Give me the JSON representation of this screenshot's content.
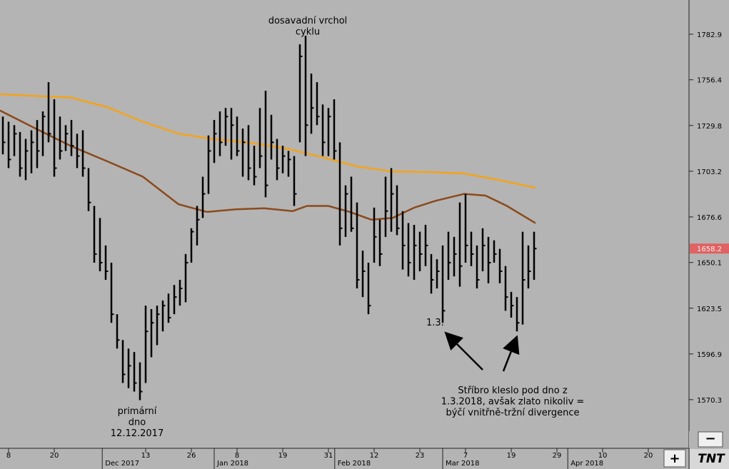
{
  "chart_data": {
    "type": "ohlc",
    "bars": {
      "high": [
        1735,
        1732,
        1730,
        1726,
        1722,
        1727,
        1733,
        1738,
        1755,
        1745,
        1735,
        1730,
        1733,
        1725,
        1727,
        1705,
        1683,
        1676,
        1660,
        1650,
        1620,
        1605,
        1600,
        1598,
        1592,
        1625,
        1623,
        1625,
        1628,
        1632,
        1637,
        1640,
        1655,
        1670,
        1683,
        1700,
        1724,
        1733,
        1738,
        1740,
        1740,
        1735,
        1728,
        1730,
        1718,
        1740,
        1750,
        1736,
        1722,
        1718,
        1715,
        1712,
        1777,
        1782,
        1760,
        1755,
        1742,
        1740,
        1745,
        1720,
        1695,
        1700,
        1685,
        1657,
        1650,
        1682,
        1675,
        1700,
        1705,
        1695,
        1680,
        1673,
        1672,
        1668,
        1672,
        1655,
        1652,
        1660,
        1668,
        1665,
        1685,
        1690,
        1668,
        1660,
        1670,
        1665,
        1663,
        1658,
        1648,
        1633,
        1630,
        1668,
        1660,
        1668
      ],
      "low": [
        1713,
        1705,
        1712,
        1700,
        1698,
        1702,
        1705,
        1712,
        1720,
        1700,
        1710,
        1715,
        1712,
        1705,
        1700,
        1680,
        1650,
        1645,
        1640,
        1615,
        1600,
        1580,
        1577,
        1575,
        1570,
        1580,
        1595,
        1602,
        1610,
        1615,
        1620,
        1625,
        1627,
        1650,
        1660,
        1676,
        1690,
        1708,
        1712,
        1718,
        1710,
        1712,
        1700,
        1698,
        1695,
        1705,
        1688,
        1710,
        1698,
        1702,
        1700,
        1683,
        1720,
        1712,
        1725,
        1730,
        1712,
        1712,
        1710,
        1660,
        1665,
        1668,
        1635,
        1630,
        1620,
        1650,
        1648,
        1665,
        1668,
        1666,
        1646,
        1642,
        1640,
        1645,
        1648,
        1632,
        1635,
        1615,
        1640,
        1642,
        1636,
        1650,
        1648,
        1635,
        1645,
        1638,
        1650,
        1638,
        1622,
        1618,
        1610,
        1614,
        1635,
        1640
      ],
      "close": [
        1720,
        1710,
        1725,
        1705,
        1715,
        1720,
        1715,
        1735,
        1725,
        1705,
        1715,
        1725,
        1718,
        1712,
        1705,
        1685,
        1655,
        1650,
        1645,
        1620,
        1605,
        1585,
        1590,
        1580,
        1575,
        1610,
        1615,
        1620,
        1625,
        1618,
        1630,
        1635,
        1650,
        1668,
        1675,
        1690,
        1715,
        1725,
        1720,
        1735,
        1730,
        1715,
        1720,
        1705,
        1700,
        1712,
        1695,
        1720,
        1705,
        1712,
        1710,
        1690,
        1770,
        1730,
        1740,
        1735,
        1720,
        1735,
        1715,
        1670,
        1690,
        1670,
        1640,
        1645,
        1625,
        1665,
        1655,
        1680,
        1690,
        1670,
        1660,
        1650,
        1660,
        1655,
        1660,
        1640,
        1645,
        1622,
        1650,
        1655,
        1648,
        1660,
        1655,
        1640,
        1660,
        1650,
        1655,
        1645,
        1630,
        1625,
        1615,
        1640,
        1645,
        1658.2
      ],
      "color": "#000000"
    },
    "moving_averages": [
      {
        "color": "#f5a31a",
        "x": [
          -0.5,
          12,
          18.25,
          24.5,
          30.75,
          37,
          43.25,
          49.5,
          55.75,
          62,
          68.25,
          74.5,
          80.75,
          87,
          93.25
        ],
        "values": [
          1748,
          1746,
          1740.5,
          1732,
          1725,
          1721.8,
          1719.8,
          1716.5,
          1711.5,
          1706,
          1703,
          1702.7,
          1701.9,
          1698,
          1693.6
        ]
      },
      {
        "color": "#8b4a1c",
        "x": [
          -0.5,
          5.75,
          12,
          18.25,
          24.5,
          30.75,
          35.75,
          40.75,
          45.75,
          50.75,
          53.25,
          57,
          60.75,
          64.5,
          68.25,
          72,
          75.75,
          80.75,
          84.5,
          88.25,
          93.25
        ],
        "values": [
          1738.5,
          1728,
          1717.7,
          1709,
          1700,
          1684,
          1679.5,
          1681,
          1681.6,
          1680,
          1683,
          1683,
          1679.5,
          1675,
          1676,
          1682,
          1686,
          1690,
          1689,
          1683,
          1673
        ]
      }
    ],
    "xlim": [
      -0.5,
      120.125
    ],
    "xticks": [
      {
        "value": 1,
        "label": "8"
      },
      {
        "value": 9,
        "label": "20"
      },
      {
        "value": 25,
        "label": "13"
      },
      {
        "value": 33,
        "label": "26"
      },
      {
        "value": 41,
        "label": "8"
      },
      {
        "value": 49,
        "label": "19"
      },
      {
        "value": 57,
        "label": "31"
      },
      {
        "value": 65,
        "label": "12"
      },
      {
        "value": 73,
        "label": "23"
      },
      {
        "value": 81,
        "label": "7"
      },
      {
        "value": 89,
        "label": "19"
      },
      {
        "value": 97,
        "label": "29"
      },
      {
        "value": 105,
        "label": "10"
      },
      {
        "value": 113,
        "label": "20"
      }
    ],
    "month_ticks": [
      {
        "value": 17.4,
        "label": "Dec 2017"
      },
      {
        "value": 37,
        "label": "Jan 2018"
      },
      {
        "value": 58.1,
        "label": "Feb 2018"
      },
      {
        "value": 77,
        "label": "Mar 2018"
      },
      {
        "value": 98.9,
        "label": "Apr 2018"
      }
    ],
    "ylim": [
      1542.0,
      1802.8
    ],
    "yticks": [
      1570.3,
      1596.9,
      1623.5,
      1650.1,
      1676.6,
      1703.2,
      1729.8,
      1756.4,
      1782.9
    ],
    "last_price": 1658.2,
    "annotations": [
      {
        "lines": [
          "dosavadní vrchol",
          "cyklu"
        ]
      },
      {
        "lines": [
          "primární",
          "dno",
          "12.12.2017"
        ]
      },
      {
        "lines": [
          "1.3."
        ]
      },
      {
        "lines": [
          "Stříbro kleslo pod dno z",
          "1.3.2018, avšak zlato nikoliv =",
          "býčí vnitřně-tržní divergence"
        ]
      }
    ]
  },
  "controls": {
    "zoom_out": "−",
    "zoom_in": "+",
    "logo": "TNT"
  }
}
